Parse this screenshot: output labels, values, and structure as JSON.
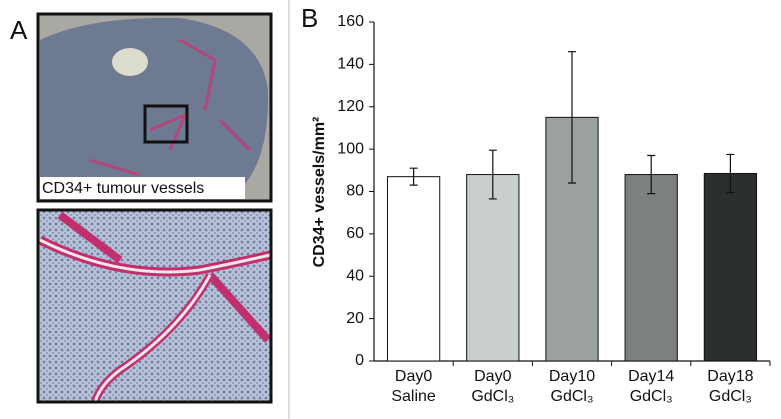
{
  "panels": {
    "a": "A",
    "b": "B"
  },
  "image_caption": "CD34+ tumour vessels",
  "chart_data": {
    "type": "bar",
    "ylabel": "CD34+ vessels/mm²",
    "categories": [
      [
        "Day0",
        "Saline"
      ],
      [
        "Day0",
        "GdCl₃"
      ],
      [
        "Day10",
        "GdCl₃"
      ],
      [
        "Day14",
        "GdCl₃"
      ],
      [
        "Day18",
        "GdCl₃"
      ]
    ],
    "values": [
      87,
      88,
      115,
      88,
      88.5
    ],
    "errors": [
      4,
      11.5,
      31,
      9,
      9
    ],
    "colors": [
      "#ffffff",
      "#c8cfcc",
      "#9ba19e",
      "#7b817e",
      "#2b2f2f"
    ],
    "ylim": [
      0,
      160
    ],
    "yticks": [
      0,
      20,
      40,
      60,
      80,
      100,
      120,
      140,
      160
    ]
  }
}
